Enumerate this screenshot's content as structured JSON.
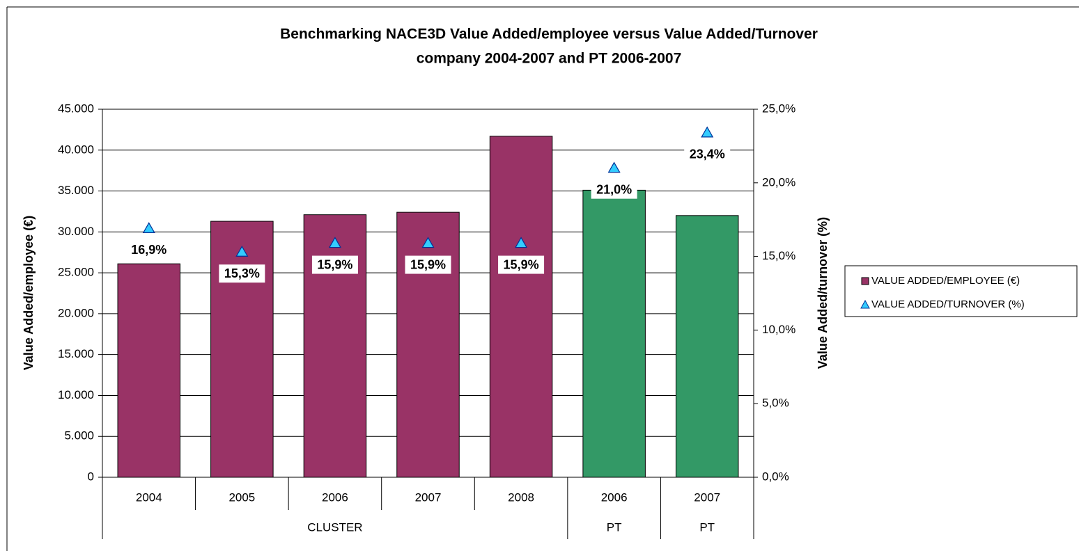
{
  "chart_data": {
    "type": "bar_line",
    "title": [
      "Benchmarking NACE3D Value Added/employee versus Value Added/Turnover",
      "company 2004-2007 and PT 2006-2007"
    ],
    "y_label": "Value Added/employee (€)",
    "y2_label": "Value Added/turnover (%)",
    "categories": [
      "2004",
      "2005",
      "2006",
      "2007",
      "2008",
      "2006",
      "2007"
    ],
    "groups": [
      {
        "label": "CLUSTER",
        "count": 5
      },
      {
        "label": "PT",
        "count": 1
      },
      {
        "label": "PT",
        "count": 1
      }
    ],
    "series": [
      {
        "name": "VALUE ADDED/EMPLOYEE (€)",
        "type": "bar",
        "color": "#993366",
        "colors": [
          "#993366",
          "#993366",
          "#993366",
          "#993366",
          "#993366",
          "#339966",
          "#339966"
        ],
        "values": [
          26100,
          31300,
          32100,
          32400,
          41700,
          35100,
          32000
        ]
      },
      {
        "name": "VALUE ADDED/TURNOVER (%)",
        "type": "marker",
        "axis": "y2",
        "color": "#33ccff",
        "values": [
          16.9,
          15.3,
          15.9,
          15.9,
          15.9,
          21.0,
          23.4
        ],
        "value_labels": [
          "16,9%",
          "15,3%",
          "15,9%",
          "15,9%",
          "15,9%",
          "21,0%",
          "23,4%"
        ]
      }
    ],
    "ylim": [
      0,
      45000
    ],
    "yticks": [
      {
        "value": 0,
        "label": "0"
      },
      {
        "value": 5000,
        "label": "5.000"
      },
      {
        "value": 10000,
        "label": "10.000"
      },
      {
        "value": 15000,
        "label": "15.000"
      },
      {
        "value": 20000,
        "label": "20.000"
      },
      {
        "value": 25000,
        "label": "25.000"
      },
      {
        "value": 30000,
        "label": "30.000"
      },
      {
        "value": 35000,
        "label": "35.000"
      },
      {
        "value": 40000,
        "label": "40.000"
      },
      {
        "value": 45000,
        "label": "45.000"
      }
    ],
    "y2lim": [
      0,
      25
    ],
    "y2ticks": [
      {
        "value": 0,
        "label": "0,0%"
      },
      {
        "value": 5,
        "label": "5,0%"
      },
      {
        "value": 10,
        "label": "10,0%"
      },
      {
        "value": 15,
        "label": "15,0%"
      },
      {
        "value": 20,
        "label": "20,0%"
      },
      {
        "value": 25,
        "label": "25,0%"
      }
    ],
    "grid": true,
    "legend": "right"
  }
}
